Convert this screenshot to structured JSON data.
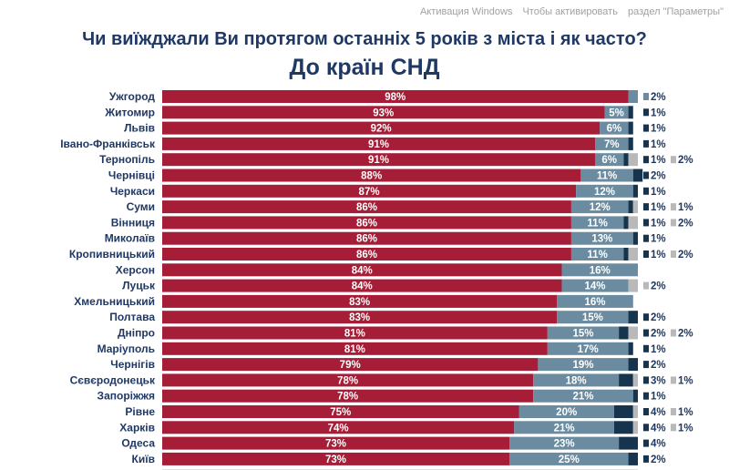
{
  "chart_data": {
    "type": "bar",
    "orientation": "horizontal",
    "stacked": true,
    "title": "Чи виїжджали Ви протягом останніх 5 років з міста і як часто?",
    "subtitle": "До країн СНД",
    "categories": [
      "Ужгород",
      "Житомир",
      "Львів",
      "Івано-Франківськ",
      "Тернопіль",
      "Чернівці",
      "Черкаси",
      "Суми",
      "Вінниця",
      "Миколаїв",
      "Кропивницький",
      "Херсон",
      "Луцьк",
      "Хмельницький",
      "Полтава",
      "Дніпро",
      "Маріуполь",
      "Чернігів",
      "Сєвєродонецьк",
      "Запоріжжя",
      "Рівне",
      "Харків",
      "Одеса",
      "Київ"
    ],
    "series": [
      {
        "color": "#a51d36",
        "values": [
          98,
          93,
          92,
          91,
          91,
          88,
          87,
          86,
          86,
          86,
          86,
          84,
          84,
          83,
          83,
          81,
          81,
          79,
          78,
          78,
          75,
          74,
          73,
          73
        ]
      },
      {
        "color": "#6a8ba0",
        "values": [
          2,
          5,
          6,
          7,
          6,
          11,
          12,
          12,
          11,
          13,
          11,
          16,
          14,
          16,
          15,
          15,
          17,
          19,
          18,
          21,
          20,
          21,
          23,
          25
        ]
      },
      {
        "color": "#17344f",
        "values": [
          0,
          1,
          1,
          1,
          1,
          2,
          1,
          1,
          1,
          1,
          1,
          0,
          0,
          0,
          2,
          2,
          1,
          2,
          3,
          1,
          4,
          4,
          4,
          2
        ]
      },
      {
        "color": "#b9b9b9",
        "values": [
          0,
          0,
          0,
          0,
          2,
          0,
          0,
          1,
          2,
          0,
          2,
          0,
          2,
          0,
          0,
          2,
          0,
          0,
          1,
          0,
          1,
          1,
          0,
          0
        ]
      }
    ],
    "xlim": [
      0,
      100
    ],
    "value_suffix": "%",
    "legend": "none",
    "grid": false
  },
  "watermark": [
    "Активация Windows",
    "Чтобы активировать",
    "раздел \"Параметры\""
  ]
}
